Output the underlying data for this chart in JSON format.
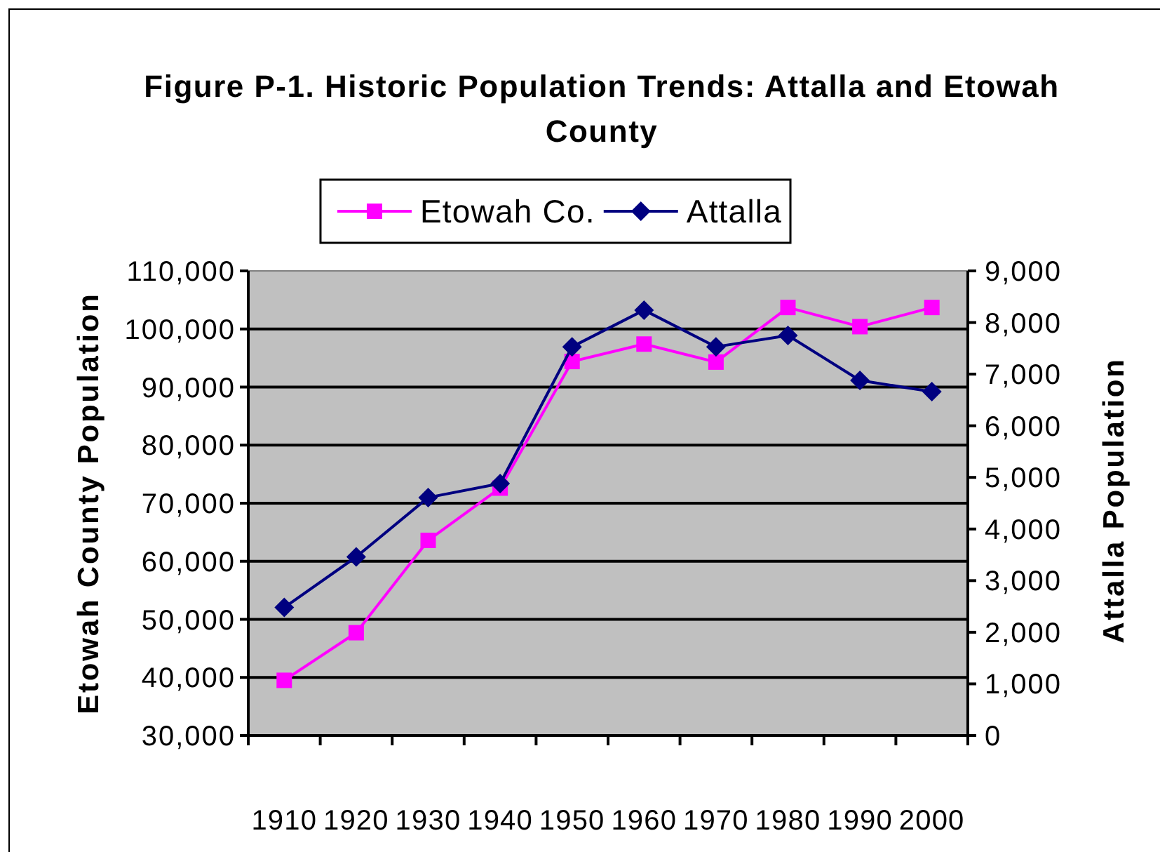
{
  "chart_data": {
    "type": "line",
    "title": "Figure P-1. Historic Population Trends: Attalla and Etowah County",
    "ylabel": "Etowah County Population",
    "y2label": "Attalla Population",
    "categories": [
      "1910",
      "1920",
      "1930",
      "1940",
      "1950",
      "1960",
      "1970",
      "1980",
      "1990",
      "2000"
    ],
    "series": [
      {
        "name": "Etowah Co.",
        "color": "#ff00ff",
        "marker": "square",
        "values": [
          39500,
          47700,
          63600,
          72600,
          94400,
          97400,
          94300,
          103700,
          100400,
          103700
        ]
      },
      {
        "name": "Attalla",
        "color": "#000080",
        "marker": "diamond",
        "axis": "y2",
        "values": [
          2480,
          3460,
          4610,
          4880,
          7530,
          8240,
          7530,
          7750,
          6880,
          6660
        ]
      }
    ],
    "ylim": [
      30000,
      110000
    ],
    "yticks": [
      {
        "value": 30000,
        "label": "30,000"
      },
      {
        "value": 40000,
        "label": "40,000"
      },
      {
        "value": 50000,
        "label": "50,000"
      },
      {
        "value": 60000,
        "label": "60,000"
      },
      {
        "value": 70000,
        "label": "70,000"
      },
      {
        "value": 80000,
        "label": "80,000"
      },
      {
        "value": 90000,
        "label": "90,000"
      },
      {
        "value": 100000,
        "label": "100,000"
      },
      {
        "value": 110000,
        "label": "110,000"
      }
    ],
    "y2lim": [
      0,
      9000
    ],
    "y2ticks": [
      0,
      {
        "value": 1000,
        "label": "1,000"
      },
      {
        "value": 2000,
        "label": "2,000"
      },
      {
        "value": 3000,
        "label": "3,000"
      },
      {
        "value": 4000,
        "label": "4,000"
      },
      {
        "value": 5000,
        "label": "5,000"
      },
      {
        "value": 6000,
        "label": "6,000"
      },
      {
        "value": 7000,
        "label": "7,000"
      },
      {
        "value": 8000,
        "label": "8,000"
      },
      {
        "value": 9000,
        "label": "9,000"
      }
    ],
    "grid": "y",
    "legend": "top"
  }
}
